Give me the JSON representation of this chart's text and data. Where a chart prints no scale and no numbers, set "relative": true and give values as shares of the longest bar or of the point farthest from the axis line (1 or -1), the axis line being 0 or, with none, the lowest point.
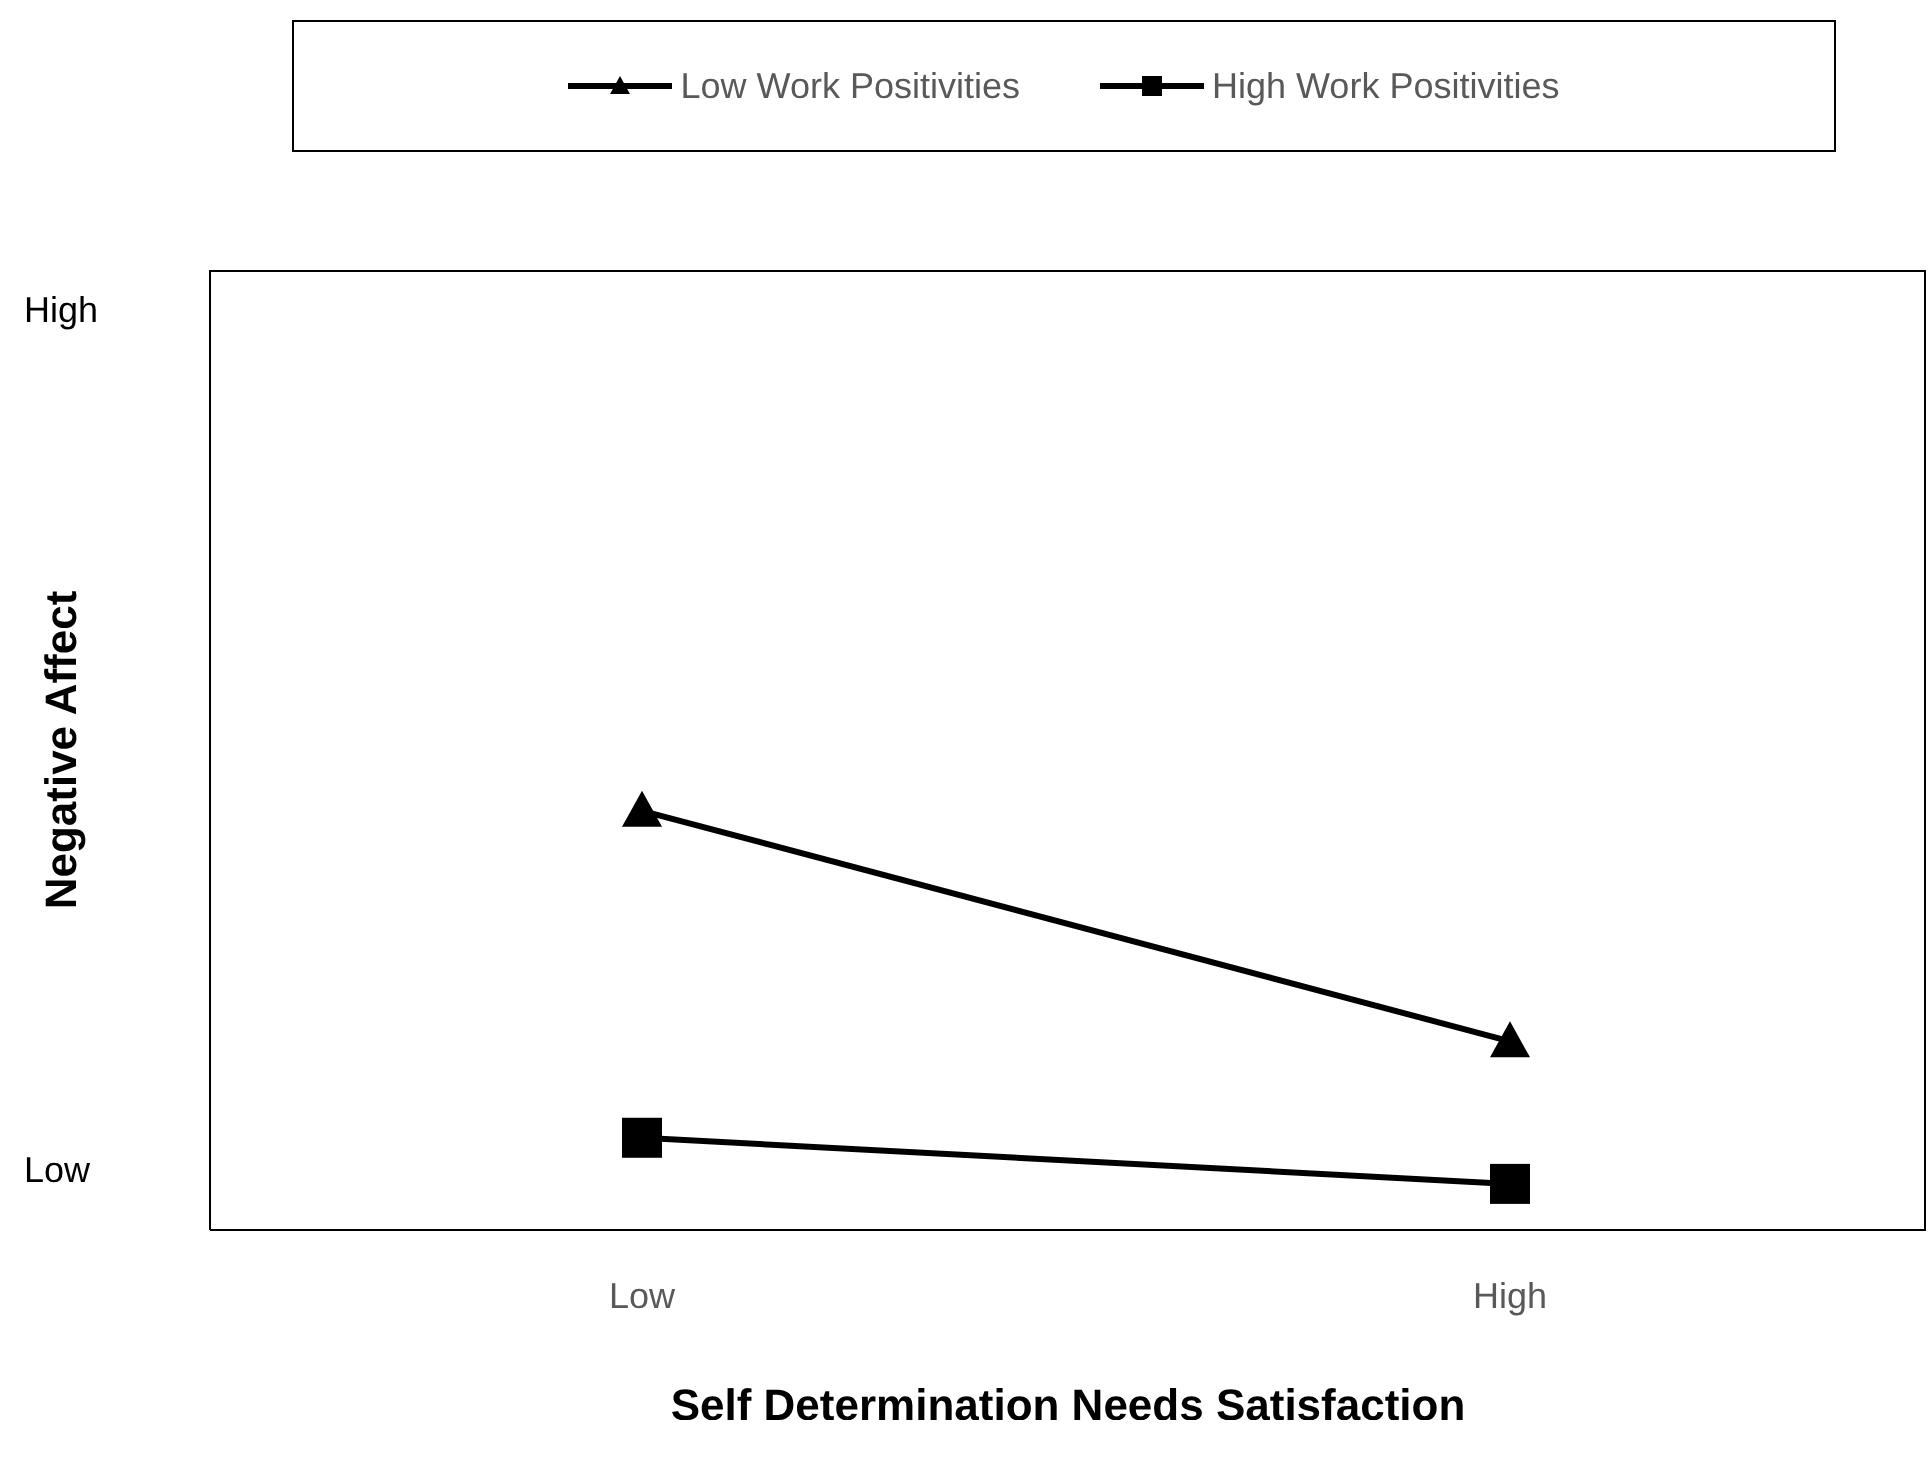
{
  "chart_data": {
    "type": "line",
    "xlabel": "Self Determination Needs Satisfaction",
    "ylabel": "Negative Affect",
    "categories": [
      "Low",
      "High"
    ],
    "series": [
      {
        "name": "Low Work Positivities",
        "color": "#000000",
        "marker": "triangle",
        "values": [
          1,
          0.45
        ]
      },
      {
        "name": "High Work Positivities",
        "color": "#000000",
        "marker": "square",
        "values": [
          0.22,
          0.11
        ]
      }
    ],
    "relative": true,
    "annotations": [
      "High",
      "Low"
    ],
    "legend": "top",
    "line_style": "solid"
  }
}
